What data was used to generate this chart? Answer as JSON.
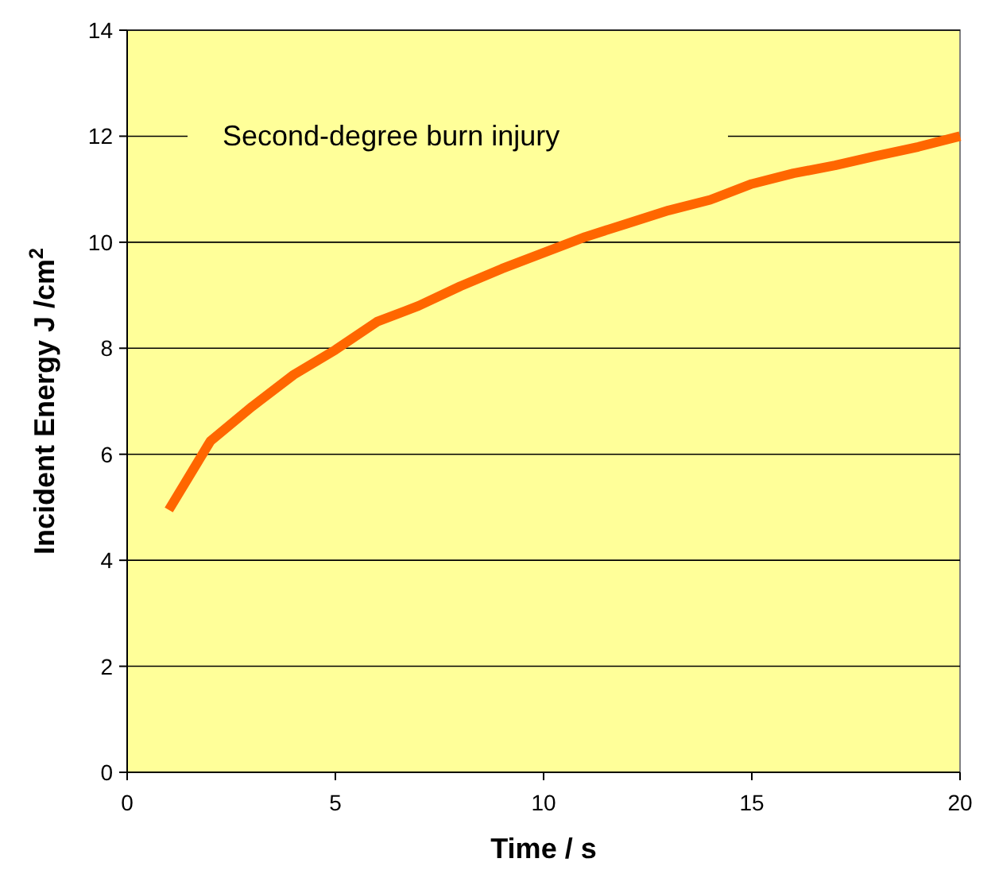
{
  "chart_data": {
    "type": "line",
    "xlabel": "Time / s",
    "ylabel": "Incident Energy J /cm$^{2}$",
    "x": [
      1,
      2,
      3,
      4,
      5,
      6,
      7,
      8,
      9,
      10,
      11,
      12,
      13,
      14,
      15,
      16,
      17,
      18,
      19,
      20
    ],
    "series": [
      {
        "color": "#ff6600",
        "values": [
          4.95,
          6.25,
          6.9,
          7.5,
          7.97,
          8.5,
          8.8,
          9.17,
          9.5,
          9.8,
          10.1,
          10.35,
          10.6,
          10.8,
          11.1,
          11.3,
          11.45,
          11.63,
          11.8,
          12.0
        ]
      }
    ],
    "xlim": [
      0,
      20
    ],
    "xticks": [
      0,
      5,
      10,
      15,
      20
    ],
    "ylim": [
      0,
      14
    ],
    "yticks": [
      0,
      2,
      4,
      6,
      8,
      10,
      12,
      14
    ],
    "grid": "y",
    "marker": "none",
    "line_style": "solid",
    "annotations": [
      "Second-degree burn injury"
    ]
  }
}
